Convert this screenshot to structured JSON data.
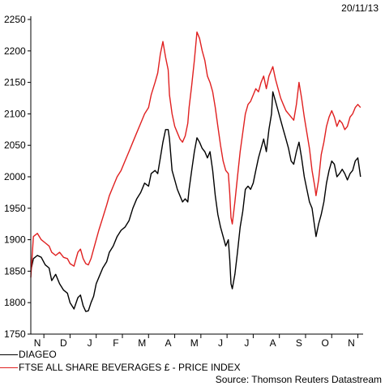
{
  "date": "20/11/13",
  "source": "Source: Thomson Reuters Datastream",
  "chart_data": {
    "type": "line",
    "title": "",
    "xlabel": "",
    "ylabel": "",
    "ylim": [
      1750,
      2250
    ],
    "yticks": [
      1750,
      1800,
      1850,
      1900,
      1950,
      2000,
      2050,
      2100,
      2150,
      2200,
      2250
    ],
    "xlim": [
      0,
      12.7
    ],
    "xtick_labels": [
      {
        "label": "N",
        "x": 0.25
      },
      {
        "label": "D",
        "x": 1.25
      },
      {
        "label": "J",
        "x": 2.25
      },
      {
        "label": "F",
        "x": 3.25
      },
      {
        "label": "M",
        "x": 4.25
      },
      {
        "label": "A",
        "x": 5.25
      },
      {
        "label": "M",
        "x": 6.25
      },
      {
        "label": "J",
        "x": 7.25
      },
      {
        "label": "J",
        "x": 8.25
      },
      {
        "label": "A",
        "x": 9.25
      },
      {
        "label": "S",
        "x": 10.25
      },
      {
        "label": "O",
        "x": 11.25
      },
      {
        "label": "N",
        "x": 12.25
      }
    ],
    "grid": false,
    "series": [
      {
        "name": "DIAGEO",
        "color": "#000000",
        "points": [
          [
            0.0,
            1850
          ],
          [
            0.1,
            1870
          ],
          [
            0.25,
            1875
          ],
          [
            0.4,
            1872
          ],
          [
            0.55,
            1860
          ],
          [
            0.7,
            1855
          ],
          [
            0.8,
            1835
          ],
          [
            0.95,
            1845
          ],
          [
            1.1,
            1830
          ],
          [
            1.25,
            1820
          ],
          [
            1.4,
            1815
          ],
          [
            1.5,
            1800
          ],
          [
            1.65,
            1790
          ],
          [
            1.8,
            1808
          ],
          [
            1.9,
            1812
          ],
          [
            2.0,
            1795
          ],
          [
            2.1,
            1786
          ],
          [
            2.2,
            1787
          ],
          [
            2.3,
            1800
          ],
          [
            2.4,
            1810
          ],
          [
            2.5,
            1830
          ],
          [
            2.6,
            1840
          ],
          [
            2.75,
            1855
          ],
          [
            2.9,
            1865
          ],
          [
            3.0,
            1880
          ],
          [
            3.15,
            1890
          ],
          [
            3.3,
            1905
          ],
          [
            3.45,
            1915
          ],
          [
            3.6,
            1920
          ],
          [
            3.75,
            1930
          ],
          [
            3.9,
            1950
          ],
          [
            4.05,
            1965
          ],
          [
            4.2,
            1975
          ],
          [
            4.35,
            1990
          ],
          [
            4.5,
            1985
          ],
          [
            4.6,
            2005
          ],
          [
            4.75,
            2010
          ],
          [
            4.85,
            2005
          ],
          [
            4.95,
            2030
          ],
          [
            5.05,
            2055
          ],
          [
            5.15,
            2075
          ],
          [
            5.25,
            2075
          ],
          [
            5.3,
            2060
          ],
          [
            5.4,
            2010
          ],
          [
            5.5,
            1995
          ],
          [
            5.6,
            1980
          ],
          [
            5.7,
            1970
          ],
          [
            5.8,
            1960
          ],
          [
            5.9,
            1965
          ],
          [
            6.0,
            1960
          ],
          [
            6.05,
            1980
          ],
          [
            6.15,
            2010
          ],
          [
            6.25,
            2040
          ],
          [
            6.35,
            2062
          ],
          [
            6.45,
            2055
          ],
          [
            6.55,
            2045
          ],
          [
            6.65,
            2040
          ],
          [
            6.75,
            2030
          ],
          [
            6.85,
            2040
          ],
          [
            6.95,
            2010
          ],
          [
            7.05,
            1970
          ],
          [
            7.15,
            1940
          ],
          [
            7.25,
            1920
          ],
          [
            7.35,
            1905
          ],
          [
            7.45,
            1890
          ],
          [
            7.55,
            1900
          ],
          [
            7.6,
            1870
          ],
          [
            7.65,
            1830
          ],
          [
            7.7,
            1822
          ],
          [
            7.8,
            1845
          ],
          [
            7.9,
            1880
          ],
          [
            8.0,
            1920
          ],
          [
            8.1,
            1945
          ],
          [
            8.2,
            1980
          ],
          [
            8.3,
            1985
          ],
          [
            8.4,
            1980
          ],
          [
            8.5,
            1990
          ],
          [
            8.6,
            2010
          ],
          [
            8.7,
            2030
          ],
          [
            8.8,
            2045
          ],
          [
            8.9,
            2060
          ],
          [
            9.0,
            2040
          ],
          [
            9.1,
            2075
          ],
          [
            9.2,
            2100
          ],
          [
            9.25,
            2135
          ],
          [
            9.35,
            2120
          ],
          [
            9.45,
            2105
          ],
          [
            9.55,
            2090
          ],
          [
            9.65,
            2075
          ],
          [
            9.75,
            2060
          ],
          [
            9.85,
            2045
          ],
          [
            9.95,
            2025
          ],
          [
            10.05,
            2020
          ],
          [
            10.15,
            2040
          ],
          [
            10.25,
            2055
          ],
          [
            10.35,
            2030
          ],
          [
            10.45,
            2000
          ],
          [
            10.55,
            1980
          ],
          [
            10.65,
            1960
          ],
          [
            10.75,
            1950
          ],
          [
            10.85,
            1920
          ],
          [
            10.9,
            1905
          ],
          [
            11.0,
            1925
          ],
          [
            11.1,
            1940
          ],
          [
            11.2,
            1960
          ],
          [
            11.3,
            1990
          ],
          [
            11.4,
            2010
          ],
          [
            11.5,
            2025
          ],
          [
            11.6,
            2020
          ],
          [
            11.7,
            2000
          ],
          [
            11.8,
            2005
          ],
          [
            11.9,
            2012
          ],
          [
            12.0,
            2005
          ],
          [
            12.1,
            1995
          ],
          [
            12.2,
            2005
          ],
          [
            12.3,
            2010
          ],
          [
            12.4,
            2025
          ],
          [
            12.5,
            2030
          ],
          [
            12.6,
            2000
          ]
        ]
      },
      {
        "name": "FTSE ALL SHARE BEVERAGES £ - PRICE INDEX",
        "color": "#e02020",
        "points": [
          [
            0.0,
            1840
          ],
          [
            0.1,
            1905
          ],
          [
            0.25,
            1910
          ],
          [
            0.4,
            1900
          ],
          [
            0.55,
            1895
          ],
          [
            0.7,
            1890
          ],
          [
            0.8,
            1880
          ],
          [
            0.95,
            1875
          ],
          [
            1.1,
            1880
          ],
          [
            1.25,
            1872
          ],
          [
            1.4,
            1870
          ],
          [
            1.5,
            1862
          ],
          [
            1.65,
            1858
          ],
          [
            1.8,
            1880
          ],
          [
            1.9,
            1885
          ],
          [
            2.0,
            1870
          ],
          [
            2.1,
            1862
          ],
          [
            2.2,
            1860
          ],
          [
            2.3,
            1870
          ],
          [
            2.4,
            1885
          ],
          [
            2.5,
            1900
          ],
          [
            2.6,
            1915
          ],
          [
            2.75,
            1935
          ],
          [
            2.9,
            1955
          ],
          [
            3.0,
            1970
          ],
          [
            3.15,
            1985
          ],
          [
            3.3,
            2000
          ],
          [
            3.45,
            2010
          ],
          [
            3.6,
            2025
          ],
          [
            3.75,
            2040
          ],
          [
            3.9,
            2055
          ],
          [
            4.05,
            2070
          ],
          [
            4.2,
            2085
          ],
          [
            4.35,
            2100
          ],
          [
            4.5,
            2110
          ],
          [
            4.6,
            2130
          ],
          [
            4.75,
            2150
          ],
          [
            4.85,
            2165
          ],
          [
            4.95,
            2195
          ],
          [
            5.05,
            2215
          ],
          [
            5.15,
            2190
          ],
          [
            5.25,
            2170
          ],
          [
            5.3,
            2130
          ],
          [
            5.4,
            2100
          ],
          [
            5.5,
            2080
          ],
          [
            5.6,
            2070
          ],
          [
            5.7,
            2060
          ],
          [
            5.8,
            2055
          ],
          [
            5.9,
            2065
          ],
          [
            6.0,
            2085
          ],
          [
            6.05,
            2110
          ],
          [
            6.15,
            2145
          ],
          [
            6.25,
            2185
          ],
          [
            6.35,
            2230
          ],
          [
            6.45,
            2220
          ],
          [
            6.55,
            2200
          ],
          [
            6.65,
            2185
          ],
          [
            6.75,
            2160
          ],
          [
            6.85,
            2150
          ],
          [
            6.95,
            2135
          ],
          [
            7.05,
            2110
          ],
          [
            7.15,
            2080
          ],
          [
            7.25,
            2050
          ],
          [
            7.35,
            2025
          ],
          [
            7.45,
            2010
          ],
          [
            7.55,
            2005
          ],
          [
            7.6,
            1975
          ],
          [
            7.65,
            1935
          ],
          [
            7.7,
            1925
          ],
          [
            7.8,
            1960
          ],
          [
            7.9,
            2000
          ],
          [
            8.0,
            2040
          ],
          [
            8.1,
            2070
          ],
          [
            8.2,
            2100
          ],
          [
            8.3,
            2115
          ],
          [
            8.4,
            2120
          ],
          [
            8.5,
            2130
          ],
          [
            8.6,
            2140
          ],
          [
            8.7,
            2135
          ],
          [
            8.8,
            2150
          ],
          [
            8.9,
            2160
          ],
          [
            9.0,
            2140
          ],
          [
            9.1,
            2160
          ],
          [
            9.2,
            2170
          ],
          [
            9.25,
            2175
          ],
          [
            9.35,
            2155
          ],
          [
            9.45,
            2140
          ],
          [
            9.55,
            2125
          ],
          [
            9.65,
            2115
          ],
          [
            9.75,
            2105
          ],
          [
            9.85,
            2100
          ],
          [
            9.95,
            2095
          ],
          [
            10.05,
            2090
          ],
          [
            10.15,
            2115
          ],
          [
            10.25,
            2150
          ],
          [
            10.35,
            2125
          ],
          [
            10.45,
            2095
          ],
          [
            10.55,
            2070
          ],
          [
            10.65,
            2045
          ],
          [
            10.75,
            2010
          ],
          [
            10.85,
            1985
          ],
          [
            10.9,
            1970
          ],
          [
            11.0,
            1995
          ],
          [
            11.1,
            2035
          ],
          [
            11.2,
            2055
          ],
          [
            11.3,
            2080
          ],
          [
            11.4,
            2095
          ],
          [
            11.5,
            2105
          ],
          [
            11.6,
            2095
          ],
          [
            11.7,
            2080
          ],
          [
            11.8,
            2090
          ],
          [
            11.9,
            2085
          ],
          [
            12.0,
            2075
          ],
          [
            12.1,
            2080
          ],
          [
            12.2,
            2095
          ],
          [
            12.3,
            2100
          ],
          [
            12.4,
            2110
          ],
          [
            12.5,
            2115
          ],
          [
            12.6,
            2110
          ]
        ]
      }
    ],
    "legend_position": "bottom-left"
  }
}
